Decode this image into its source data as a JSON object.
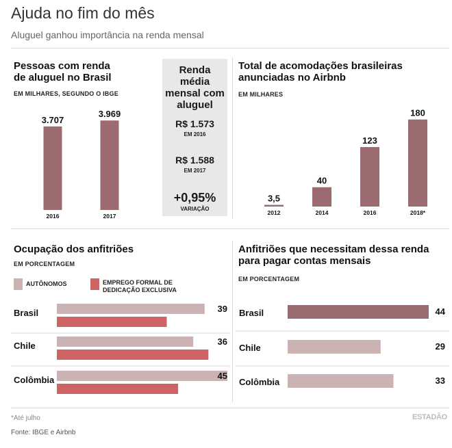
{
  "header": {
    "title": "Ajuda no fim do mês",
    "subtitle": "Aluguel ganhou importância na renda mensal"
  },
  "infobox": {
    "title_lines": [
      "Renda",
      "média",
      "mensal com",
      "aluguel"
    ],
    "value_2016": "R$ 1.573",
    "label_2016": "EM 2016",
    "value_2017": "R$ 1.588",
    "label_2017": "EM 2017",
    "variation": "+0,95%",
    "variation_label": "VARIAÇÃO"
  },
  "colors": {
    "dark_bar": "#9b6b70",
    "light_bar": "#cbb3b3",
    "red_bar": "#cd6363",
    "infobox_bg": "#e8e8e8"
  },
  "footer": {
    "footnote": "*Até julho",
    "source": "Fonte: IBGE e Airbnb",
    "brand": "ESTADÃO"
  },
  "chart_data": [
    {
      "type": "bar",
      "title_lines": [
        "Pessoas com renda",
        "de aluguel no Brasil"
      ],
      "unit": "EM MILHARES, SEGUNDO O IBGE",
      "categories": [
        "2016",
        "2017"
      ],
      "values": [
        3707,
        3969
      ],
      "value_labels": [
        "3.707",
        "3.969"
      ],
      "ylim": [
        0,
        4400
      ],
      "color": "#9b6b70"
    },
    {
      "type": "bar",
      "title_lines": [
        "Total de acomodações brasileiras",
        "anunciadas no Airbnb"
      ],
      "unit": "EM MILHARES",
      "categories": [
        "2012",
        "2014",
        "2016",
        "2018*"
      ],
      "values": [
        3.5,
        40,
        123,
        180
      ],
      "value_labels": [
        "3,5",
        "40",
        "123",
        "180"
      ],
      "ylim": [
        0,
        198
      ],
      "color": "#9b6b70"
    },
    {
      "type": "bar",
      "orientation": "horizontal",
      "title": "Ocupação dos anfitriões",
      "unit": "EM PORCENTAGEM",
      "legend_position": "top-left",
      "categories": [
        "Brasil",
        "Chile",
        "Colômbia"
      ],
      "series": [
        {
          "name": "AUTÔNOMOS",
          "values": [
            39,
            36,
            45
          ],
          "value_labels": [
            "39",
            "36",
            "45"
          ],
          "color": "#cbb3b3"
        },
        {
          "name": "EMPREGO FORMAL DE DEDICAÇÃO EXCLUSIVA",
          "values": [
            29,
            40,
            32
          ],
          "color": "#cd6363"
        }
      ],
      "legend_lines": [
        [
          "AUTÔNOMOS"
        ],
        [
          "EMPREGO FORMAL DE",
          "DEDICAÇÃO EXCLUSIVA"
        ]
      ],
      "xlim": [
        0,
        45
      ]
    },
    {
      "type": "bar",
      "orientation": "horizontal",
      "title_lines": [
        "Anfitriões que necessitam dessa renda",
        "para pagar contas mensais"
      ],
      "unit": "EM PORCENTAGEM",
      "categories": [
        "Brasil",
        "Chile",
        "Colômbia"
      ],
      "values": [
        44,
        29,
        33
      ],
      "value_labels": [
        "44",
        "29",
        "33"
      ],
      "colors": [
        "#9b6b70",
        "#cbb3b3",
        "#cbb3b3"
      ],
      "xlim": [
        0,
        44
      ]
    }
  ]
}
